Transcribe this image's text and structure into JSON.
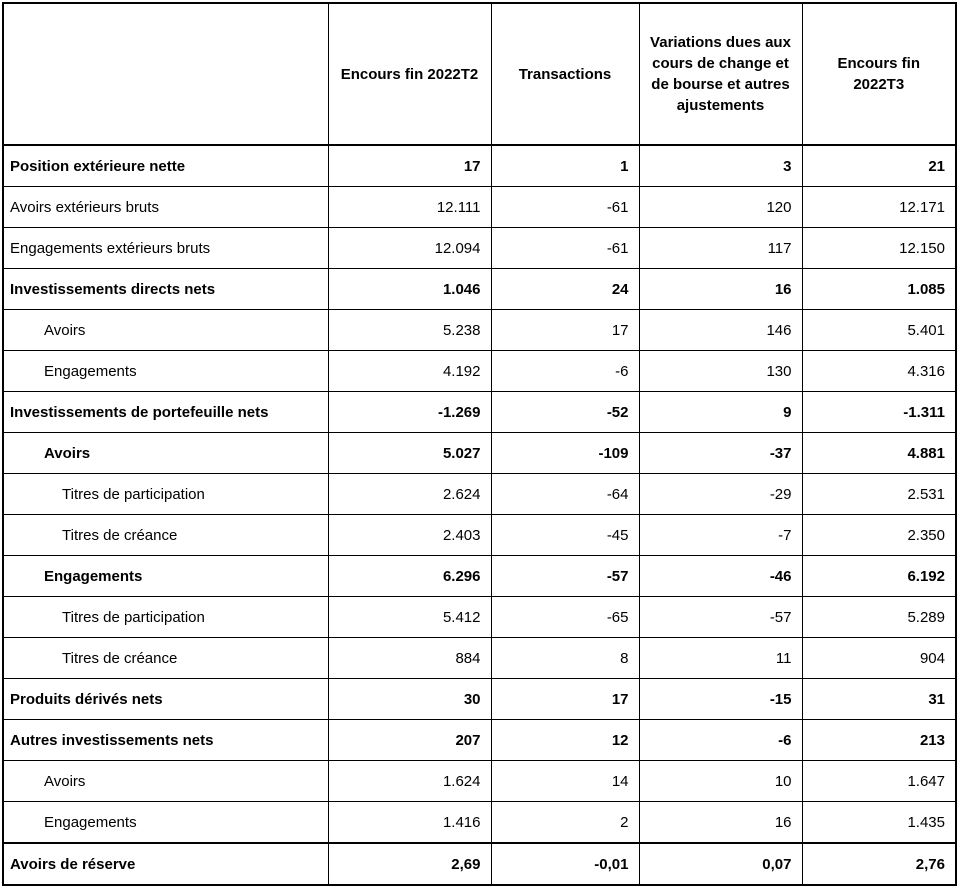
{
  "table": {
    "header": [
      "Encours fin 2022T2",
      "Transactions",
      "Variations dues aux cours de change et de bourse et autres ajustements",
      "Encours  fin 2022T3"
    ],
    "rows": [
      [
        "Position extérieure nette",
        "17",
        "1",
        "3",
        "21"
      ],
      [
        "Avoirs extérieurs bruts",
        "12.111",
        "-61",
        "120",
        "12.171"
      ],
      [
        "Engagements extérieurs bruts",
        "12.094",
        "-61",
        "117",
        "12.150"
      ],
      [
        "Investissements directs nets",
        "1.046",
        "24",
        "16",
        "1.085"
      ],
      [
        "Avoirs",
        "5.238",
        "17",
        "146",
        "5.401"
      ],
      [
        "Engagements",
        "4.192",
        "-6",
        "130",
        "4.316"
      ],
      [
        "Investissements de portefeuille nets",
        "-1.269",
        "-52",
        "9",
        "-1.311"
      ],
      [
        "Avoirs",
        "5.027",
        "-109",
        "-37",
        "4.881"
      ],
      [
        "Titres de participation",
        "2.624",
        "-64",
        "-29",
        "2.531"
      ],
      [
        "Titres de créance",
        "2.403",
        "-45",
        "-7",
        "2.350"
      ],
      [
        "Engagements",
        "6.296",
        "-57",
        "-46",
        "6.192"
      ],
      [
        "Titres de participation",
        "5.412",
        "-65",
        "-57",
        "5.289"
      ],
      [
        "Titres de créance",
        "884",
        "8",
        "11",
        "904"
      ],
      [
        "Produits dérivés nets",
        "30",
        "17",
        "-15",
        "31"
      ],
      [
        "Autres investissements nets",
        "207",
        "12",
        "-6",
        "213"
      ],
      [
        "Avoirs",
        "1.624",
        "14",
        "10",
        "1.647"
      ],
      [
        "Engagements",
        "1.416",
        "2",
        "16",
        "1.435"
      ],
      [
        "Avoirs de réserve",
        "2,69",
        "-0,01",
        "0,07",
        "2,76"
      ]
    ]
  }
}
